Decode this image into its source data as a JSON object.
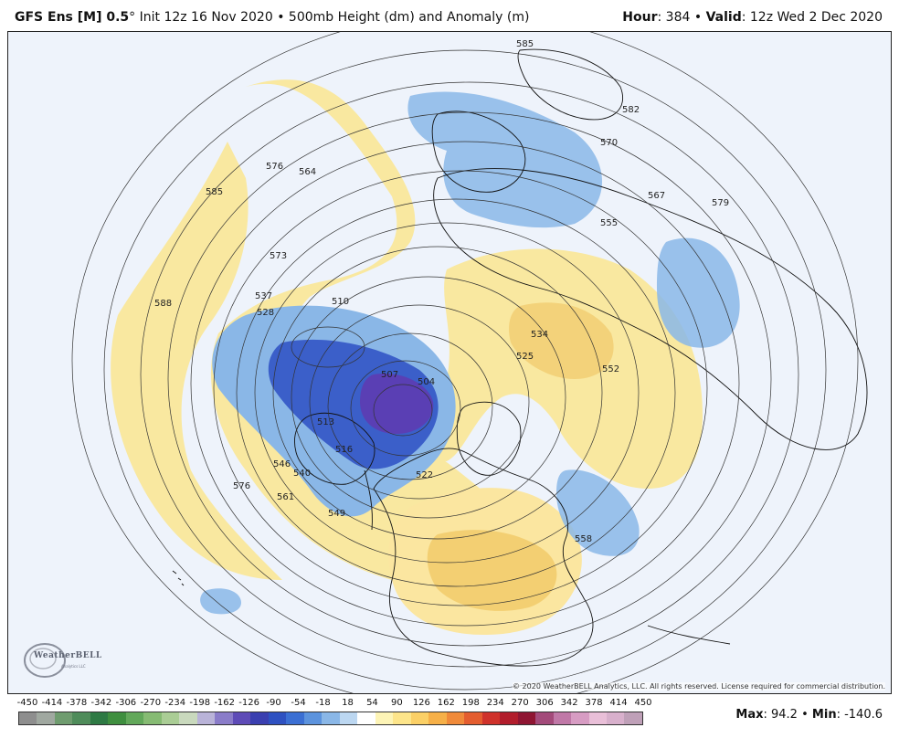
{
  "header": {
    "model": "GFS Ens [M] 0.5",
    "degree": "°",
    "init": "Init 12z 16 Nov 2020",
    "bullet": "•",
    "field": "500mb Height (dm) and Anomaly (m)",
    "hour_label": "Hour",
    "hour_value": ": 384",
    "valid_label": "Valid",
    "valid_value": ": 12z Wed 2 Dec 2020"
  },
  "map": {
    "contour_labels": [
      "585",
      "582",
      "579",
      "570",
      "567",
      "564",
      "576",
      "573",
      "555",
      "510",
      "507",
      "504",
      "537",
      "528",
      "525",
      "522",
      "513",
      "516",
      "540",
      "546",
      "549",
      "561",
      "576",
      "588",
      "585",
      "534",
      "552",
      "558"
    ],
    "copyright": "© 2020 WeatherBELL Analytics, LLC. All rights reserved. License required for commercial distribution.",
    "logo_text": "WeatherBELL",
    "logo_sub": "Analytics LLC"
  },
  "colorbar": {
    "labels": [
      "-450",
      "-414",
      "-378",
      "-342",
      "-306",
      "-270",
      "-234",
      "-198",
      "-162",
      "-126",
      "-90",
      "-54",
      "-18",
      "18",
      "54",
      "90",
      "126",
      "162",
      "198",
      "234",
      "270",
      "306",
      "342",
      "378",
      "414",
      "450"
    ],
    "colors": [
      "#8e8e8e",
      "#a0a8a0",
      "#6f9c6f",
      "#4f8c5a",
      "#2e7a44",
      "#3f8f3f",
      "#62a85a",
      "#86bb73",
      "#aacd95",
      "#c9d9bd",
      "#b9b3d8",
      "#8a7cc9",
      "#5e4bb7",
      "#3a3fb0",
      "#2e51c1",
      "#3b6fd3",
      "#5c93dd",
      "#8ab7e7",
      "#bcd7f1",
      "#ffffff",
      "#fdf4b6",
      "#fde58a",
      "#fbd066",
      "#f6b048",
      "#f08a3a",
      "#e45d2f",
      "#cf322b",
      "#b21d2c",
      "#8f1532",
      "#a34a7a",
      "#c078a7",
      "#d79cc3",
      "#e9bfd8",
      "#d8b0cc",
      "#bfa0b8"
    ],
    "max_label": "Max",
    "max_value": ": 94.2",
    "min_label": "Min",
    "min_value": ": -140.6",
    "bullet": "•"
  },
  "colors": {
    "pos_anomaly": "#f9e8a0",
    "pos_strong": "#f3d27a",
    "neg_anomaly": "#8ab7e7",
    "neg_strong": "#3b5fc9",
    "neg_core": "#5a3fb4",
    "land_line": "#111111",
    "contour": "#333333",
    "background": "#eef3fb"
  }
}
